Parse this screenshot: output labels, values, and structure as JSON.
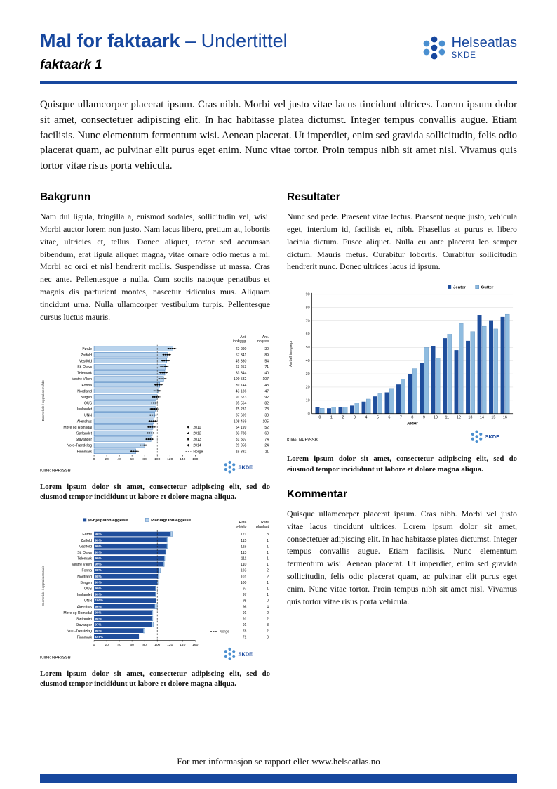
{
  "colors": {
    "accent": "#17479E",
    "bar_light": "#B9D3EC",
    "bar_light_stroke": "#3A76B8",
    "series_dark": "#1F4E9C",
    "series_light": "#8FBCE0"
  },
  "header": {
    "title_main": "Mal for faktaark",
    "title_sub": " – Undertittel",
    "subtitle": "faktaark 1",
    "logo_name": "Helseatlas",
    "logo_org": "SKDE"
  },
  "intro": "Quisque ullamcorper placerat ipsum. Cras nibh. Morbi vel justo vitae lacus tincidunt ultrices. Lorem ipsum dolor sit amet, consectetuer adipiscing elit. In hac habitasse platea dictumst. Integer tempus convallis augue. Etiam facilisis. Nunc elementum fermentum wisi. Aenean placerat. Ut imperdiet, enim sed gravida sollicitudin, felis odio placerat quam, ac pulvinar elit purus eget enim. Nunc vitae tortor. Proin tempus nibh sit amet nisl. Vivamus quis tortor vitae risus porta vehicula.",
  "sections": {
    "bakgrunn": {
      "heading": "Bakgrunn",
      "body": "Nam dui ligula, fringilla a, euismod sodales, sollicitudin vel, wisi. Morbi auctor lorem non justo. Nam lacus libero, pretium at, lobortis vitae, ultricies et, tellus. Donec aliquet, tortor sed accumsan bibendum, erat ligula aliquet magna, vitae ornare odio metus a mi. Morbi ac orci et nisl hendrerit mollis. Suspendisse ut massa. Cras nec ante. Pellentesque a nulla. Cum sociis natoque penatibus et magnis dis parturient montes, nascetur ridiculus mus. Aliquam tincidunt urna. Nulla ullamcorper vestibulum turpis. Pellentesque cursus luctus mauris."
    },
    "resultater": {
      "heading": "Resultater",
      "body": "Nunc sed pede. Praesent vitae lectus. Praesent neque justo, vehicula eget, interdum id, facilisis et, nibh. Phasellus at purus et libero lacinia dictum. Fusce aliquet. Nulla eu ante placerat leo semper dictum. Mauris metus. Curabitur lobortis. Curabitur sollicitudin hendrerit nunc. Donec ultrices lacus id ipsum."
    },
    "kommentar": {
      "heading": "Kommentar",
      "body": "Quisque ullamcorper placerat ipsum. Cras nibh. Morbi vel justo vitae lacus tincidunt ultrices. Lorem ipsum dolor sit amet, consectetuer adipiscing elit. In hac habitasse platea dictumst. Integer tempus convallis augue. Etiam facilisis. Nunc elementum fermentum wisi. Aenean placerat. Ut imperdiet, enim sed gravida sollicitudin, felis odio placerat quam, ac pulvinar elit purus eget enim. Nunc vitae tortor. Proin tempus nibh sit amet nisl. Vivamus quis tortor vitae risus porta vehicula."
    }
  },
  "captions": {
    "chart1": "Lorem ipsum dolor sit amet, consectetur adipiscing elit, sed do eiusmod tempor incididunt ut labore et dolore magna aliqua.",
    "chart2": "Lorem ipsum dolor sit amet, consectetur adipiscing elit, sed do eiusmod tempor incididunt ut labore et dolore magna aliqua.",
    "chart3": "Lorem ipsum dolor sit amet, consectetur adipiscing elit, sed do eiusmod tempor incididunt ut labore et dolore magna aliqua."
  },
  "footer": {
    "text": "For mer informasjon se rapport eller www.helseatlas.no"
  },
  "chart_data": [
    {
      "type": "bar",
      "orientation": "horizontal",
      "ylabel": "Boområde / opptaksområde",
      "categories": [
        "Førde",
        "Østfold",
        "Vestfold",
        "St. Olavs",
        "Telemark",
        "Vestre Viken",
        "Fonna",
        "Nordland",
        "Bergen",
        "OUS",
        "Innlandet",
        "UNN",
        "Akershus",
        "Møre og Romsdal",
        "Sørlandet",
        "Stavanger",
        "Nord-Trøndelag",
        "Finnmark"
      ],
      "values": [
        125,
        117,
        115,
        113,
        112,
        110,
        104,
        102,
        100,
        98,
        97,
        96,
        95,
        93,
        92,
        90,
        80,
        66
      ],
      "xlim": [
        0,
        160
      ],
      "xticks": [
        0,
        20,
        40,
        60,
        80,
        100,
        120,
        140,
        160
      ],
      "legend": [
        "2011",
        "2012",
        "2013",
        "2014",
        "Norge"
      ],
      "norge_line": 100,
      "col_headers": [
        [
          "Ant.",
          "innbygg."
        ],
        [
          "Ant.",
          "inngrep"
        ]
      ],
      "innbygg": [
        "23 330",
        "57 341",
        "45 330",
        "63 253",
        "33 344",
        "100 582",
        "39 744",
        "43 186",
        "91 673",
        "95 564",
        "75 231",
        "37 609",
        "108 469",
        "54 199",
        "83 788",
        "81 507",
        "29 058",
        "15 332"
      ],
      "inngrep": [
        "30",
        "89",
        "54",
        "71",
        "40",
        "107",
        "43",
        "47",
        "92",
        "82",
        "78",
        "38",
        "105",
        "52",
        "60",
        "74",
        "24",
        "11"
      ],
      "source": "Kilde: NPR/SSB"
    },
    {
      "type": "bar",
      "orientation": "horizontal",
      "stacked": true,
      "ylabel": "Boområde / opptaksområde",
      "series": [
        {
          "name": "Ø-hjelpsinnleggelse",
          "color": "#1F4E9C"
        },
        {
          "name": "Planlagt innleggelse",
          "color": "#B9D3EC"
        }
      ],
      "categories": [
        "Førde",
        "Østfold",
        "Vestfold",
        "St. Olavs",
        "Telemark",
        "Vestre Viken",
        "Fonna",
        "Nordland",
        "Bergen",
        "OUS",
        "Innlandet",
        "UNN",
        "Akershus",
        "Møre og Romsdal",
        "Sørlandet",
        "Stavanger",
        "Nord-Trøndelag",
        "Finnmark"
      ],
      "rate_ohjelp": [
        121,
        115,
        115,
        113,
        111,
        110,
        103,
        101,
        100,
        97,
        97,
        98,
        96,
        91,
        91,
        91,
        78,
        71
      ],
      "rate_planlagt": [
        3,
        1,
        1,
        1,
        1,
        1,
        2,
        2,
        1,
        1,
        1,
        0,
        4,
        2,
        2,
        3,
        2,
        0
      ],
      "pct_labels": [
        "98%",
        "99%",
        "99%",
        "99%",
        "99%",
        "99%",
        "98%",
        "98%",
        "99%",
        "99%",
        "99%",
        "100%",
        "96%",
        "98%",
        "98%",
        "97%",
        "98%",
        "100%"
      ],
      "xlim": [
        0,
        160
      ],
      "xticks": [
        0,
        20,
        40,
        60,
        80,
        100,
        120,
        140,
        160
      ],
      "norge_line": 100,
      "norge_label": "Norge",
      "col_headers": [
        [
          "Rate",
          "ø-hjelp"
        ],
        [
          "Rate",
          "planlagt"
        ]
      ],
      "source": "Kilde: NPR/SSB"
    },
    {
      "type": "bar",
      "orientation": "vertical",
      "categories": [
        "0",
        "1",
        "2",
        "3",
        "4",
        "5",
        "6",
        "7",
        "8",
        "9",
        "10",
        "11",
        "12",
        "13",
        "14",
        "15",
        "16"
      ],
      "series": [
        {
          "name": "Jenter",
          "color": "#1F4E9C",
          "values": [
            5,
            4,
            5,
            6,
            9,
            13,
            16,
            22,
            30,
            38,
            51,
            57,
            48,
            55,
            74,
            70,
            73
          ]
        },
        {
          "name": "Gutter",
          "color": "#8FBCE0",
          "values": [
            4,
            5,
            5,
            8,
            11,
            15,
            19,
            26,
            34,
            50,
            42,
            60,
            68,
            62,
            66,
            64,
            75
          ]
        }
      ],
      "xlabel": "Alder",
      "ylabel": "Antall inngrep",
      "ylim": [
        0,
        90
      ],
      "ytick_step": 10,
      "grid": true,
      "legend_position": "top-right",
      "source": "Kilde: NPR/SSB"
    }
  ]
}
